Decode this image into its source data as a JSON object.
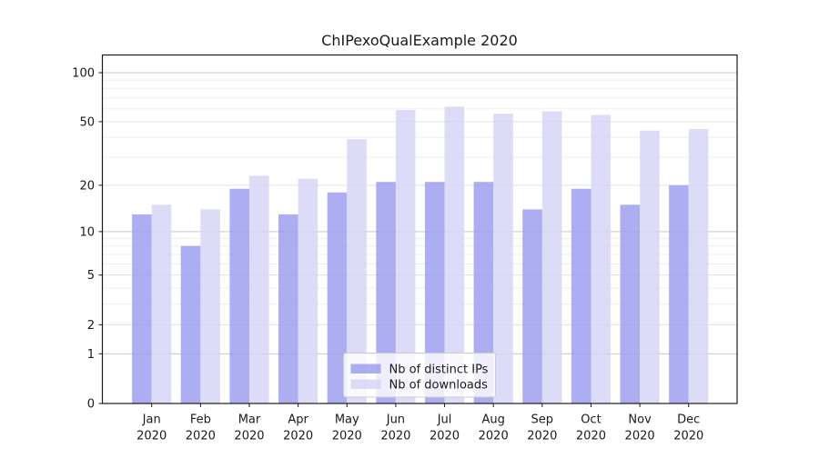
{
  "chart_data": {
    "type": "bar",
    "title": "ChIPexoQualExample 2020",
    "categories": [
      "Jan",
      "Feb",
      "Mar",
      "Apr",
      "May",
      "Jun",
      "Jul",
      "Aug",
      "Sep",
      "Oct",
      "Nov",
      "Dec"
    ],
    "x_year": "2020",
    "series": [
      {
        "name": "Nb of distinct IPs",
        "color": "#9898ee",
        "values": [
          13,
          8,
          19,
          13,
          18,
          21,
          21,
          21,
          14,
          19,
          15,
          20
        ]
      },
      {
        "name": "Nb of downloads",
        "color": "#d3d3f6",
        "values": [
          15,
          14,
          23,
          22,
          39,
          59,
          62,
          56,
          58,
          55,
          44,
          45
        ]
      }
    ],
    "bar_opacity": 0.8,
    "y_axis": {
      "scale": "log1p",
      "ticks": [
        0,
        1,
        2,
        5,
        10,
        20,
        50,
        100
      ],
      "major_gridlines": [
        1,
        10,
        100
      ],
      "sub_major_gridlines": [
        2,
        5,
        20,
        50
      ],
      "minor_gridlines": [
        3,
        4,
        6,
        7,
        8,
        9,
        30,
        40,
        60,
        70,
        80,
        90
      ],
      "range": [
        0,
        127
      ]
    },
    "grid": true,
    "legend": {
      "position": "bottom-center",
      "entries": [
        "Nb of distinct IPs",
        "Nb of downloads"
      ]
    }
  }
}
